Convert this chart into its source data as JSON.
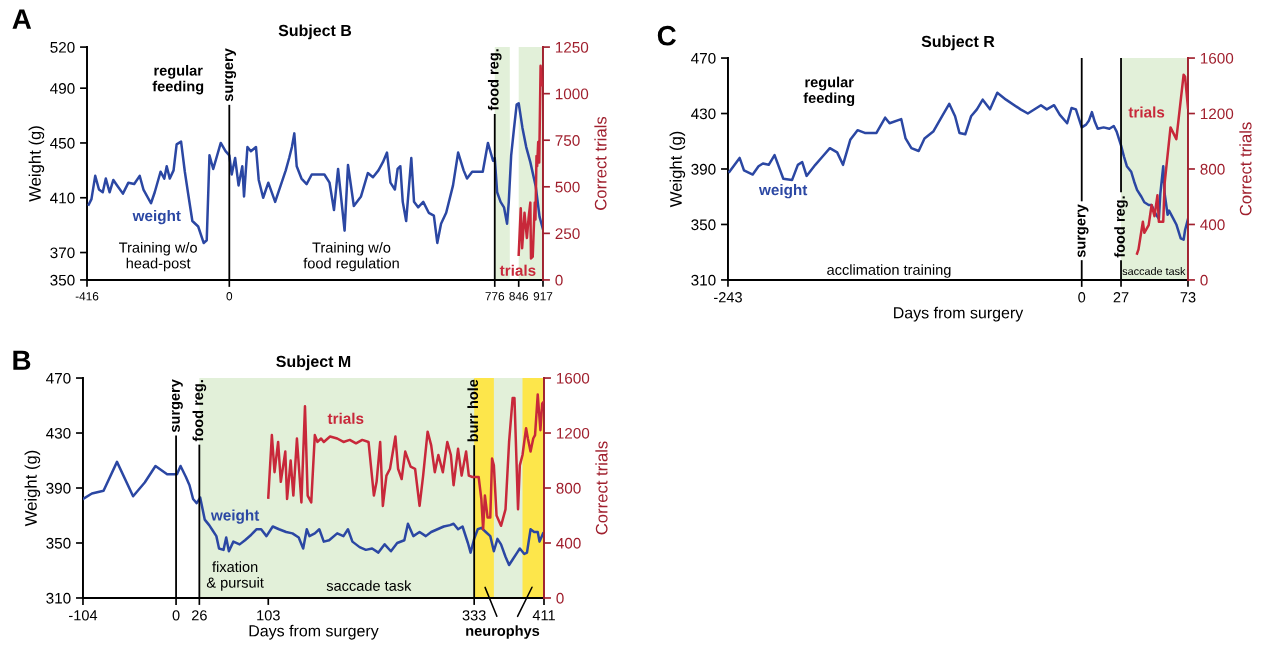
{
  "chart_data": [
    {
      "type": "line",
      "title": "Subject B",
      "ylabel": "Weight (g)",
      "y2label": "Correct trials",
      "xlim": [
        -416,
        917
      ],
      "xticks": [
        -416,
        0,
        776,
        846,
        917
      ],
      "ylim": [
        350,
        520
      ],
      "yticks": [
        350,
        370,
        410,
        450,
        490,
        520
      ],
      "y2lim": [
        0,
        1250
      ],
      "y2ticks": [
        0,
        250,
        500,
        750,
        1000,
        1250
      ],
      "grid": false,
      "series": [
        {
          "name": "weight",
          "color": "#2b47a3",
          "x": [
            -411,
            -403,
            -392,
            -381,
            -370,
            -361,
            -350,
            -339,
            -328,
            -311,
            -295,
            -278,
            -262,
            -251,
            -229,
            -218,
            -201,
            -190,
            -183,
            -174,
            -163,
            -154,
            -141,
            -130,
            -121,
            -108,
            -91,
            -75,
            -66,
            -58,
            -47,
            -25,
            -11,
            0,
            7,
            17,
            27,
            38,
            43,
            53,
            63,
            78,
            86,
            99,
            114,
            134,
            165,
            175,
            183,
            190,
            197,
            211,
            226,
            241,
            278,
            293,
            306,
            318,
            337,
            347,
            364,
            385,
            405,
            420,
            436,
            449,
            461,
            471,
            484,
            492,
            500,
            507,
            517,
            532,
            540,
            552,
            567,
            583,
            598,
            608,
            619,
            634,
            654,
            669,
            685,
            695,
            710,
            725,
            741,
            756,
            771,
            776,
            783,
            793,
            803,
            812,
            817,
            824,
            832,
            840,
            846,
            857,
            868,
            880,
            896,
            907,
            917
          ],
          "values": [
            405,
            409,
            426,
            416,
            414,
            424,
            414,
            423,
            419,
            413,
            421,
            420,
            426,
            416,
            406,
            414,
            429,
            424,
            433,
            424,
            430,
            449,
            451,
            429,
            414,
            393,
            389,
            377,
            379,
            441,
            431,
            450,
            444,
            441,
            427,
            439,
            419,
            433,
            411,
            447,
            444,
            447,
            423,
            410,
            421,
            407,
            430,
            439,
            447,
            457,
            433,
            424,
            420,
            427,
            427,
            421,
            401,
            431,
            386,
            434,
            404,
            411,
            428,
            425,
            430,
            436,
            443,
            421,
            416,
            431,
            433,
            407,
            393,
            439,
            407,
            403,
            407,
            399,
            397,
            377,
            391,
            399,
            419,
            443,
            430,
            424,
            429,
            429,
            429,
            450,
            437,
            439,
            414,
            407,
            403,
            391,
            407,
            441,
            460,
            478,
            479,
            461,
            447,
            436,
            418,
            396,
            387
          ]
        },
        {
          "name": "trials",
          "color": "#c8283a",
          "axis": "y2",
          "x": [
            846,
            852,
            856,
            863,
            870,
            875,
            880,
            882,
            887,
            893,
            895,
            898,
            900,
            903,
            906,
            910,
            913
          ],
          "values": [
            135,
            385,
            170,
            360,
            225,
            335,
            415,
            115,
            125,
            415,
            325,
            665,
            610,
            740,
            630,
            1150,
            1045
          ]
        }
      ],
      "ref_lines": [
        {
          "axis": "x",
          "value": 0,
          "label": "surgery",
          "color": "#000000"
        },
        {
          "axis": "x",
          "value": 776,
          "label": "food reg.",
          "color": "#000000"
        }
      ],
      "bands": [
        {
          "axis": "x",
          "from": 776,
          "to": 820,
          "color": "#e2f0d9"
        },
        {
          "axis": "x",
          "from": 846,
          "to": 917,
          "color": "#e2f0d9"
        }
      ],
      "annotations": [
        "A",
        "regular\nfeeding",
        "Training w/o\nhead-post",
        "Training w/o\nfood regulation"
      ]
    },
    {
      "type": "line",
      "title": "Subject M",
      "xlabel": "Days from surgery",
      "ylabel": "Weight (g)",
      "y2label": "Correct trials",
      "xlim": [
        -104,
        411
      ],
      "xticks": [
        -104,
        0,
        26,
        103,
        333,
        411
      ],
      "ylim": [
        310,
        470
      ],
      "yticks": [
        310,
        350,
        390,
        430,
        470
      ],
      "y2lim": [
        0,
        1600
      ],
      "y2ticks": [
        0,
        400,
        800,
        1200,
        1600
      ],
      "grid": false,
      "series": [
        {
          "name": "weight",
          "color": "#2b47a3",
          "x": [
            -104,
            -94,
            -81,
            -66,
            -48,
            -35,
            -23,
            -10,
            1,
            5,
            11,
            15,
            19,
            23,
            27,
            32,
            37,
            40,
            45,
            48,
            53,
            56,
            59,
            64,
            71,
            77,
            84,
            90,
            95,
            101,
            108,
            115,
            123,
            130,
            137,
            142,
            146,
            149,
            155,
            160,
            165,
            171,
            180,
            187,
            192,
            197,
            205,
            212,
            219,
            226,
            233,
            240,
            247,
            255,
            259,
            265,
            272,
            279,
            285,
            292,
            299,
            306,
            310,
            315,
            320,
            326,
            329,
            333,
            337,
            341,
            346,
            351,
            355,
            359,
            363,
            368,
            372,
            376,
            381,
            384,
            389,
            392,
            396,
            400,
            404,
            406,
            410
          ],
          "values": [
            382,
            386,
            388,
            409,
            384,
            394,
            406,
            400,
            400,
            406,
            398,
            392,
            382,
            379,
            383,
            367,
            363,
            360,
            355,
            346,
            345,
            354,
            344,
            351,
            349,
            352,
            356,
            360,
            360,
            355,
            362,
            360,
            358,
            357,
            354,
            346,
            360,
            355,
            357,
            360,
            351,
            352,
            357,
            355,
            360,
            351,
            347,
            345,
            346,
            343,
            349,
            344,
            350,
            352,
            364,
            355,
            358,
            355,
            358,
            360,
            362,
            363,
            364,
            360,
            362,
            350,
            343,
            353,
            360,
            361,
            358,
            355,
            344,
            353,
            349,
            340,
            334,
            338,
            343,
            346,
            342,
            343,
            360,
            358,
            358,
            351,
            357
          ]
        },
        {
          "name": "trials",
          "color": "#c8283a",
          "axis": "y2",
          "x": [
            103,
            107,
            110,
            114,
            117,
            122,
            124,
            128,
            131,
            135,
            140,
            144,
            147,
            151,
            155,
            158,
            162,
            165,
            172,
            180,
            187,
            194,
            201,
            208,
            215,
            221,
            224,
            228,
            231,
            235,
            239,
            245,
            248,
            252,
            256,
            262,
            267,
            272,
            276,
            281,
            285,
            289,
            293,
            298,
            303,
            307,
            310,
            315,
            319,
            324,
            327,
            331,
            333,
            338,
            341,
            343,
            345,
            348,
            351,
            353,
            355,
            358,
            363,
            368,
            372,
            376,
            378,
            382,
            384,
            387,
            391,
            393,
            396,
            399,
            401,
            404,
            407,
            409,
            411
          ],
          "values": [
            730,
            1185,
            915,
            1135,
            845,
            1065,
            720,
            1000,
            745,
            1160,
            695,
            1395,
            745,
            695,
            1185,
            1135,
            1160,
            1135,
            1175,
            1160,
            1135,
            1150,
            1125,
            1150,
            1135,
            745,
            845,
            1135,
            670,
            890,
            940,
            1175,
            940,
            865,
            1065,
            955,
            940,
            670,
            890,
            1210,
            1110,
            915,
            1040,
            915,
            1135,
            1040,
            820,
            1085,
            890,
            1065,
            890,
            880,
            880,
            880,
            720,
            500,
            745,
            585,
            585,
            1015,
            965,
            600,
            525,
            645,
            1135,
            1455,
            1455,
            645,
            965,
            1040,
            1235,
            1160,
            1065,
            1160,
            1185,
            1480,
            1220,
            1415,
            1430
          ]
        }
      ],
      "ref_lines": [
        {
          "axis": "x",
          "value": 0,
          "label": "surgery",
          "color": "#000000"
        },
        {
          "axis": "x",
          "value": 26,
          "label": "food reg.",
          "color": "#000000"
        },
        {
          "axis": "x",
          "value": 333,
          "label": "burr hole",
          "color": "#000000"
        }
      ],
      "bands": [
        {
          "axis": "x",
          "from": 26,
          "to": 411,
          "color": "#e2f0d9"
        },
        {
          "axis": "x",
          "from": 333,
          "to": 355,
          "color": "#fde64b"
        },
        {
          "axis": "x",
          "from": 387,
          "to": 411,
          "color": "#fde64b"
        }
      ],
      "annotations": [
        "B",
        "fixation\n& pursuit",
        "saccade task",
        "neurophys"
      ]
    },
    {
      "type": "line",
      "title": "Subject R",
      "xlabel": "Days from surgery",
      "ylabel": "Weight (g)",
      "y2label": "Correct trials",
      "xlim": [
        -243,
        73
      ],
      "xticks": [
        -243,
        0,
        27,
        73
      ],
      "ylim": [
        310,
        470
      ],
      "yticks": [
        310,
        350,
        390,
        430,
        470
      ],
      "y2lim": [
        0,
        1600
      ],
      "y2ticks": [
        0,
        400,
        800,
        1200,
        1600
      ],
      "series": [
        {
          "name": "weight",
          "color": "#2b47a3",
          "x": [
            -242,
            -235,
            -232,
            -226,
            -222,
            -219,
            -215,
            -211,
            -205,
            -199,
            -195,
            -192,
            -189,
            -183,
            -178,
            -173,
            -168,
            -164,
            -159,
            -154,
            -149,
            -145,
            -141,
            -135,
            -132,
            -124,
            -121,
            -117,
            -112,
            -108,
            -102,
            -96,
            -91,
            -87,
            -84,
            -80,
            -76,
            -72,
            -68,
            -63,
            -58,
            -52,
            -42,
            -37,
            -28,
            -24,
            -19,
            -15,
            -10,
            -7,
            -4,
            0,
            3,
            5,
            7,
            9,
            11,
            15,
            19,
            22,
            24,
            27,
            29,
            31,
            34,
            36,
            38,
            41,
            43,
            46,
            48,
            50,
            53,
            54,
            56,
            57,
            59,
            60,
            63,
            65,
            68,
            70,
            71,
            73
          ],
          "values": [
            388,
            398,
            389,
            386,
            392,
            394,
            393,
            400,
            383,
            382,
            393,
            395,
            385,
            393,
            399,
            405,
            402,
            393,
            411,
            418,
            416,
            416,
            416,
            427,
            423,
            426,
            412,
            405,
            403,
            412,
            417,
            428,
            437,
            428,
            416,
            415,
            428,
            433,
            440,
            433,
            445,
            440,
            433,
            430,
            436,
            433,
            436,
            429,
            423,
            434,
            433,
            420,
            422,
            425,
            431,
            424,
            419,
            420,
            419,
            421,
            417,
            407,
            399,
            392,
            388,
            381,
            375,
            370,
            366,
            364,
            364,
            359,
            354,
            372,
            392,
            372,
            357,
            360,
            354,
            350,
            340,
            339,
            346,
            354
          ]
        },
        {
          "name": "trials",
          "color": "#c8283a",
          "axis": "y2",
          "x": [
            38,
            39,
            42,
            43,
            46,
            48,
            50,
            52,
            53,
            56,
            57,
            58,
            61,
            65,
            70,
            71,
            73
          ],
          "values": [
            190,
            220,
            420,
            340,
            395,
            540,
            460,
            610,
            420,
            420,
            700,
            800,
            1100,
            1015,
            1480,
            1465,
            1240
          ]
        }
      ],
      "ref_lines": [
        {
          "axis": "x",
          "value": 0,
          "label": "surgery",
          "color": "#000000"
        },
        {
          "axis": "x",
          "value": 27,
          "label": "food reg.",
          "color": "#000000"
        }
      ],
      "bands": [
        {
          "axis": "x",
          "from": 27,
          "to": 73,
          "color": "#e2f0d9"
        }
      ],
      "annotations": [
        "C",
        "regular\nfeeding",
        "acclimation training",
        "saccade task"
      ]
    }
  ]
}
